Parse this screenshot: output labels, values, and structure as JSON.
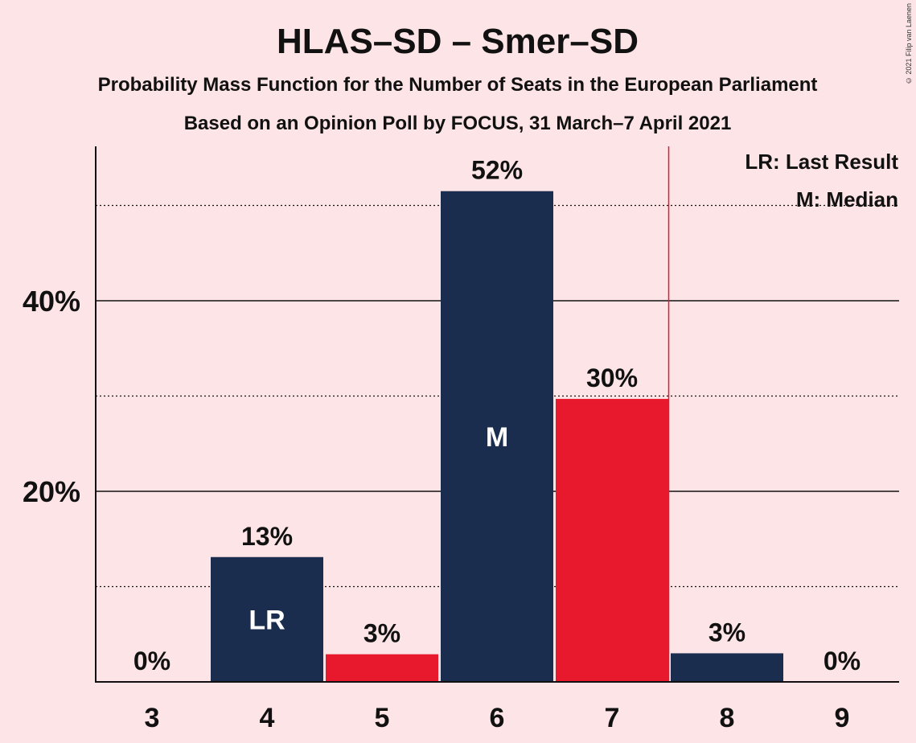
{
  "copyright": "© 2021 Filip van Laenen",
  "chart_data": {
    "type": "bar",
    "title": "HLAS–SD – Smer–SD",
    "subtitle": "Probability Mass Function for the Number of Seats in the European Parliament",
    "subtitle2": "Based on an Opinion Poll by FOCUS, 31 March–7 April 2021",
    "categories": [
      "3",
      "4",
      "5",
      "6",
      "7",
      "8",
      "9"
    ],
    "values": [
      0,
      13.1,
      2.9,
      51.5,
      29.7,
      3.0,
      0
    ],
    "data_labels": [
      "0%",
      "13%",
      "3%",
      "52%",
      "30%",
      "3%",
      "0%"
    ],
    "bar_colors": [
      "#1b2d4f",
      "#1b2d4f",
      "#e8192d",
      "#1b2d4f",
      "#e8192d",
      "#1b2d4f",
      "#1b2d4f"
    ],
    "bar_marks": [
      "",
      "LR",
      "",
      "M",
      "",
      "",
      ""
    ],
    "ylim": [
      0,
      56
    ],
    "y_ticks": [
      20,
      40
    ],
    "y_tick_labels": [
      "20%",
      "40%"
    ],
    "minor_gridlines": [
      10,
      30,
      50
    ],
    "last_result_line_after": "7",
    "legend": [
      "LR: Last Result",
      "M: Median"
    ],
    "legend_position": "top-right",
    "colors": {
      "background": "#fde4e6",
      "navy": "#1b2d4f",
      "red": "#e8192d"
    }
  }
}
